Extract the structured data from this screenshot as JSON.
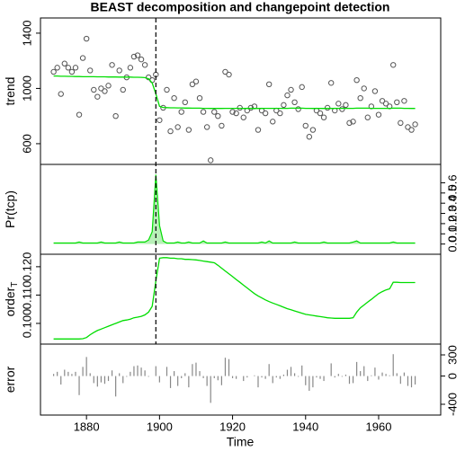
{
  "chart_data": {
    "type": "panels",
    "title": "BEAST decomposition and changepoint detection",
    "xlabel": "Time",
    "xlim": [
      1867.4,
      1977
    ],
    "xticks": [
      1880,
      1900,
      1920,
      1940,
      1960
    ],
    "changepoint": 1899,
    "x": [
      1871,
      1872,
      1873,
      1874,
      1875,
      1876,
      1877,
      1878,
      1879,
      1880,
      1881,
      1882,
      1883,
      1884,
      1885,
      1886,
      1887,
      1888,
      1889,
      1890,
      1891,
      1892,
      1893,
      1894,
      1895,
      1896,
      1897,
      1898,
      1899,
      1900,
      1901,
      1902,
      1903,
      1904,
      1905,
      1906,
      1907,
      1908,
      1909,
      1910,
      1911,
      1912,
      1913,
      1914,
      1915,
      1916,
      1917,
      1918,
      1919,
      1920,
      1921,
      1922,
      1923,
      1924,
      1925,
      1926,
      1927,
      1928,
      1929,
      1930,
      1931,
      1932,
      1933,
      1934,
      1935,
      1936,
      1937,
      1938,
      1939,
      1940,
      1941,
      1942,
      1943,
      1944,
      1945,
      1946,
      1947,
      1948,
      1949,
      1950,
      1951,
      1952,
      1953,
      1954,
      1955,
      1956,
      1957,
      1958,
      1959,
      1960,
      1961,
      1962,
      1963,
      1964,
      1965,
      1966,
      1967,
      1968,
      1969,
      1970
    ],
    "panels": [
      {
        "ylabel": "trend",
        "axis_side": "left",
        "ylim": [
          450,
          1510
        ],
        "yticks": [
          600,
          1000,
          1400
        ],
        "series": [
          {
            "style": "points",
            "color": "#555555",
            "values": [
              1120,
              1150,
              960,
              1180,
              1150,
              1120,
              1150,
              810,
              1220,
              1360,
              1130,
              990,
              940,
              1000,
              980,
              1020,
              1170,
              800,
              1130,
              990,
              1080,
              1150,
              1230,
              1240,
              1210,
              1170,
              1080,
              1060,
              1100,
              770,
              860,
              990,
              690,
              930,
              720,
              830,
              900,
              700,
              1030,
              1050,
              930,
              830,
              720,
              480,
              830,
              800,
              730,
              1120,
              1100,
              830,
              820,
              860,
              790,
              840,
              860,
              870,
              700,
              840,
              820,
              1030,
              760,
              840,
              820,
              880,
              950,
              990,
              900,
              850,
              1010,
              730,
              650,
              700,
              840,
              820,
              790,
              860,
              1040,
              840,
              890,
              850,
              880,
              750,
              760,
              1060,
              930,
              1000,
              790,
              870,
              980,
              810,
              910,
              890,
              870,
              1170,
              900,
              750,
              910,
              720,
              700,
              740
            ]
          },
          {
            "style": "line",
            "color": "#00dd00",
            "values": [
              1090,
              1090,
              1088,
              1088,
              1087,
              1087,
              1086,
              1086,
              1085,
              1085,
              1085,
              1085,
              1084,
              1084,
              1084,
              1083,
              1083,
              1083,
              1082,
              1082,
              1082,
              1082,
              1081,
              1081,
              1080,
              1078,
              1070,
              1040,
              960,
              870,
              862,
              861,
              860,
              860,
              859,
              859,
              858,
              858,
              857,
              857,
              857,
              856,
              856,
              855,
              855,
              855,
              855,
              856,
              856,
              856,
              856,
              856,
              855,
              855,
              855,
              855,
              855,
              855,
              856,
              856,
              856,
              856,
              856,
              856,
              856,
              857,
              857,
              857,
              857,
              856,
              856,
              855,
              855,
              855,
              855,
              855,
              855,
              856,
              856,
              856,
              856,
              856,
              856,
              857,
              857,
              857,
              857,
              856,
              856,
              856,
              856,
              856,
              856,
              857,
              857,
              857,
              856,
              856,
              855,
              855
            ]
          }
        ]
      },
      {
        "ylabel": "Pr(tcp)",
        "axis_side": "right",
        "ylim": [
          -0.1,
          0.78
        ],
        "yticks": [
          {
            "value": 0,
            "label": "0.0"
          },
          0.1,
          0.2,
          0.3,
          0.4,
          0.5,
          0.6
        ],
        "series": [
          {
            "style": "area",
            "color": "#00dd00",
            "fill": "#b8f0b8",
            "values": [
              0.01,
              0.01,
              0.01,
              0.01,
              0.01,
              0.01,
              0.01,
              0.02,
              0.01,
              0.01,
              0.01,
              0.01,
              0.01,
              0.02,
              0.01,
              0.01,
              0.01,
              0.01,
              0.02,
              0.01,
              0.01,
              0.01,
              0.01,
              0.02,
              0.02,
              0.02,
              0.04,
              0.12,
              0.68,
              0.18,
              0.03,
              0.01,
              0.01,
              0.01,
              0.02,
              0.01,
              0.01,
              0.02,
              0.01,
              0.01,
              0.01,
              0.03,
              0.01,
              0.01,
              0.01,
              0.01,
              0.01,
              0.02,
              0.01,
              0.01,
              0.01,
              0.01,
              0.01,
              0.01,
              0.01,
              0.01,
              0.01,
              0.02,
              0.01,
              0.03,
              0.01,
              0.01,
              0.01,
              0.01,
              0.01,
              0.01,
              0.02,
              0.01,
              0.01,
              0.01,
              0.01,
              0.01,
              0.01,
              0.01,
              0.02,
              0.01,
              0.01,
              0.01,
              0.01,
              0.01,
              0.01,
              0.01,
              0.02,
              0.03,
              0.01,
              0.01,
              0.01,
              0.01,
              0.01,
              0.01,
              0.01,
              0.01,
              0.01,
              0.02,
              0.01,
              0.01,
              0.01,
              0.01,
              0.01,
              0.01
            ]
          }
        ]
      },
      {
        "ylabel": "order",
        "ylabel_sub": "T",
        "axis_side": "left",
        "ylim": [
          0.0927,
          0.1244
        ],
        "yticks": [
          {
            "value": 0.1,
            "label": "0.100"
          },
          {
            "value": 0.11,
            "label": "0.110"
          },
          {
            "value": 0.12,
            "label": "0.120"
          }
        ],
        "series": [
          {
            "style": "line",
            "color": "#00dd00",
            "values": [
              0.0945,
              0.0945,
              0.0945,
              0.0945,
              0.0945,
              0.0945,
              0.0945,
              0.0945,
              0.0946,
              0.095,
              0.096,
              0.0968,
              0.0975,
              0.098,
              0.0985,
              0.099,
              0.0995,
              0.1,
              0.1005,
              0.101,
              0.1012,
              0.1015,
              0.102,
              0.1022,
              0.1025,
              0.103,
              0.104,
              0.106,
              0.115,
              0.123,
              0.1232,
              0.1232,
              0.123,
              0.123,
              0.1228,
              0.1228,
              0.1226,
              0.1226,
              0.1225,
              0.1224,
              0.1222,
              0.122,
              0.1218,
              0.1216,
              0.1214,
              0.1205,
              0.1195,
              0.1185,
              0.1175,
              0.1165,
              0.1155,
              0.1145,
              0.1135,
              0.1125,
              0.1115,
              0.1105,
              0.1097,
              0.109,
              0.1083,
              0.1077,
              0.1072,
              0.1067,
              0.1062,
              0.1057,
              0.1052,
              0.1048,
              0.1044,
              0.104,
              0.1036,
              0.1032,
              0.103,
              0.1028,
              0.1026,
              0.1024,
              0.1022,
              0.102,
              0.1019,
              0.1018,
              0.1018,
              0.1018,
              0.1018,
              0.1018,
              0.102,
              0.104,
              0.1055,
              0.1065,
              0.1075,
              0.1085,
              0.1095,
              0.1105,
              0.1112,
              0.1118,
              0.1122,
              0.1145,
              0.1145,
              0.1144,
              0.1144,
              0.1144,
              0.1144,
              0.1144
            ]
          }
        ]
      },
      {
        "ylabel": "error",
        "axis_side": "right",
        "ylim": [
          -553,
          453
        ],
        "yticks": [
          -400,
          0,
          300
        ],
        "series": [
          {
            "style": "bars",
            "color": "#888888",
            "values": [
              30,
              60,
              -120,
              90,
              60,
              30,
              60,
              -270,
              130,
              270,
              40,
              -100,
              -150,
              -90,
              -110,
              -70,
              80,
              -290,
              40,
              -100,
              -10,
              60,
              140,
              150,
              120,
              80,
              -10,
              0,
              140,
              -90,
              0,
              130,
              -170,
              70,
              -140,
              -30,
              40,
              -160,
              170,
              190,
              70,
              -30,
              -140,
              -380,
              -30,
              -60,
              -130,
              260,
              240,
              -30,
              -40,
              0,
              -70,
              -20,
              0,
              10,
              -160,
              -20,
              -40,
              170,
              -100,
              -20,
              -40,
              20,
              90,
              130,
              40,
              -10,
              150,
              -130,
              -210,
              -160,
              -20,
              -40,
              -70,
              0,
              180,
              -20,
              30,
              -10,
              20,
              -110,
              -100,
              200,
              70,
              140,
              -70,
              10,
              120,
              -50,
              50,
              30,
              10,
              310,
              40,
              -110,
              50,
              -140,
              -160,
              -120
            ]
          }
        ]
      }
    ]
  }
}
